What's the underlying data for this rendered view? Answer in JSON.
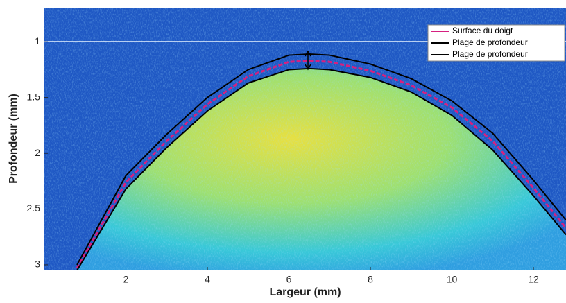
{
  "chart_data": {
    "type": "line",
    "xlabel": "Largeur (mm)",
    "ylabel": "Profondeur (mm)",
    "xlim": [
      0,
      12.8
    ],
    "ylim": [
      0.7,
      3.05
    ],
    "y_reversed": true,
    "xticks": [
      2,
      4,
      6,
      8,
      10,
      12
    ],
    "yticks": [
      1,
      1.5,
      2,
      2.5,
      3
    ],
    "legend": "upper right",
    "x": [
      0.8,
      2,
      3,
      4,
      5,
      6,
      6.5,
      7,
      8,
      9,
      10,
      11,
      12,
      12.8
    ],
    "series": [
      {
        "name": "Surface du doigt",
        "color": "#d62080",
        "values": [
          3.03,
          2.26,
          1.89,
          1.56,
          1.31,
          1.18,
          1.17,
          1.18,
          1.26,
          1.39,
          1.59,
          1.89,
          2.31,
          2.67
        ]
      },
      {
        "name": "Plage de profondeur",
        "color": "#000000",
        "values": [
          3.0,
          2.2,
          1.83,
          1.5,
          1.25,
          1.12,
          1.11,
          1.12,
          1.2,
          1.33,
          1.53,
          1.82,
          2.24,
          2.6
        ]
      },
      {
        "name": "Plage de profondeur",
        "color": "#000000",
        "values": [
          3.05,
          2.32,
          1.95,
          1.62,
          1.37,
          1.25,
          1.24,
          1.25,
          1.32,
          1.45,
          1.66,
          1.97,
          2.38,
          2.73
        ]
      }
    ]
  }
}
